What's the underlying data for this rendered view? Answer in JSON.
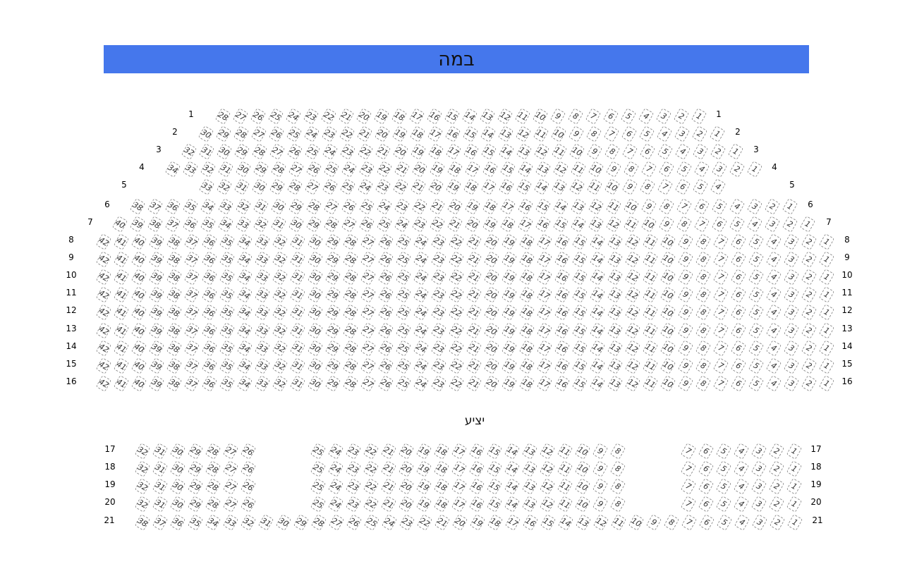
{
  "stage": {
    "label": "במה",
    "color": "#4577ec"
  },
  "exit_label": "יציע",
  "rows": [
    {
      "label": "1",
      "segments": [
        [
          28,
          1
        ]
      ]
    },
    {
      "label": "2",
      "segments": [
        [
          30,
          1
        ]
      ]
    },
    {
      "label": "3",
      "segments": [
        [
          32,
          1
        ]
      ]
    },
    {
      "label": "4",
      "segments": [
        [
          34,
          1
        ]
      ]
    },
    {
      "label": "5",
      "segments": [
        [
          33,
          4
        ]
      ]
    },
    {
      "label": "6",
      "segments": [
        [
          38,
          1
        ]
      ]
    },
    {
      "label": "7",
      "segments": [
        [
          40,
          1
        ]
      ]
    },
    {
      "label": "8",
      "segments": [
        [
          42,
          1
        ]
      ]
    },
    {
      "label": "9",
      "segments": [
        [
          42,
          1
        ]
      ]
    },
    {
      "label": "10",
      "segments": [
        [
          42,
          1
        ]
      ]
    },
    {
      "label": "11",
      "segments": [
        [
          42,
          1
        ]
      ]
    },
    {
      "label": "12",
      "segments": [
        [
          42,
          1
        ]
      ]
    },
    {
      "label": "13",
      "segments": [
        [
          42,
          1
        ]
      ]
    },
    {
      "label": "14",
      "segments": [
        [
          42,
          1
        ]
      ]
    },
    {
      "label": "15",
      "segments": [
        [
          42,
          1
        ]
      ]
    },
    {
      "label": "16",
      "segments": [
        [
          42,
          1
        ]
      ]
    },
    {
      "label": "17",
      "segments": [
        [
          32,
          26
        ],
        [
          25,
          8
        ],
        [
          7,
          1
        ]
      ]
    },
    {
      "label": "18",
      "segments": [
        [
          32,
          26
        ],
        [
          25,
          8
        ],
        [
          7,
          1
        ]
      ]
    },
    {
      "label": "19",
      "segments": [
        [
          32,
          26
        ],
        [
          25,
          8
        ],
        [
          7,
          1
        ]
      ]
    },
    {
      "label": "20",
      "segments": [
        [
          32,
          26
        ],
        [
          25,
          8
        ],
        [
          7,
          1
        ]
      ]
    },
    {
      "label": "21",
      "segments": [
        [
          38,
          1
        ]
      ]
    }
  ]
}
